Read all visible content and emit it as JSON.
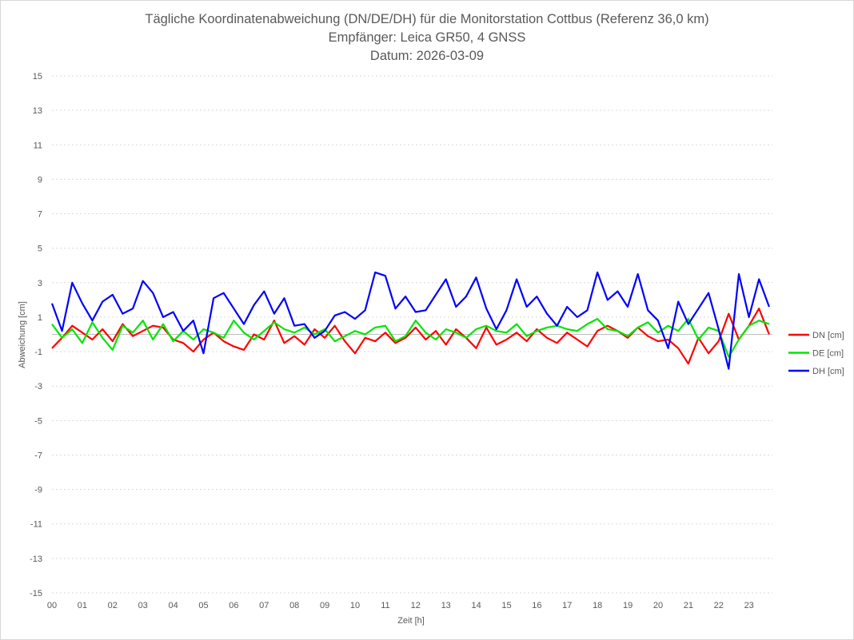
{
  "chart_data": {
    "type": "line",
    "title": "Tägliche Koordinatenabweichung (DN/DE/DH) für die Monitorstation Cottbus (Referenz 36,0 km)",
    "subtitle": [
      "Empfänger: Leica GR50, 4 GNSS",
      "Datum: 2026-03-09"
    ],
    "xlabel": "Zeit [h]",
    "ylabel": "Abweichung [cm]",
    "xlim": [
      0,
      24
    ],
    "ylim": [
      -15,
      15
    ],
    "x_tick_labels": [
      "00",
      "01",
      "02",
      "03",
      "04",
      "05",
      "06",
      "07",
      "08",
      "09",
      "10",
      "11",
      "12",
      "13",
      "14",
      "15",
      "16",
      "17",
      "18",
      "19",
      "20",
      "21",
      "22",
      "23"
    ],
    "y_ticks": [
      15,
      13,
      11,
      9,
      7,
      5,
      3,
      1,
      -1,
      -3,
      -5,
      -7,
      -9,
      -11,
      -13,
      -15
    ],
    "grid": true,
    "legend_position": "right",
    "x_step_hours": 0.3333,
    "series": [
      {
        "name": "DN [cm]",
        "color": "#ff0000",
        "values": [
          -0.8,
          -0.2,
          0.5,
          0.1,
          -0.3,
          0.3,
          -0.4,
          0.6,
          -0.1,
          0.2,
          0.5,
          0.4,
          -0.3,
          -0.5,
          -1.0,
          -0.3,
          0.1,
          -0.4,
          -0.7,
          -0.9,
          0.0,
          -0.3,
          0.8,
          -0.5,
          -0.1,
          -0.6,
          0.3,
          -0.2,
          0.5,
          -0.4,
          -1.1,
          -0.2,
          -0.4,
          0.1,
          -0.5,
          -0.2,
          0.4,
          -0.3,
          0.2,
          -0.6,
          0.3,
          -0.2,
          -0.8,
          0.4,
          -0.6,
          -0.3,
          0.1,
          -0.4,
          0.3,
          -0.2,
          -0.5,
          0.1,
          -0.3,
          -0.7,
          0.2,
          0.5,
          0.2,
          -0.2,
          0.4,
          -0.1,
          -0.4,
          -0.3,
          -0.8,
          -1.7,
          -0.2,
          -1.1,
          -0.4,
          1.2,
          -0.3,
          0.5,
          1.5,
          0.0
        ]
      },
      {
        "name": "DE [cm]",
        "color": "#00e600",
        "values": [
          0.6,
          -0.2,
          0.3,
          -0.5,
          0.7,
          -0.2,
          -0.9,
          0.5,
          0.1,
          0.8,
          -0.3,
          0.6,
          -0.4,
          0.2,
          -0.3,
          0.3,
          0.1,
          -0.2,
          0.8,
          0.1,
          -0.3,
          0.2,
          0.7,
          0.3,
          0.1,
          0.4,
          0.0,
          0.3,
          -0.4,
          -0.1,
          0.2,
          0.0,
          0.4,
          0.5,
          -0.4,
          -0.1,
          0.8,
          0.1,
          -0.3,
          0.3,
          0.1,
          -0.2,
          0.3,
          0.5,
          0.2,
          0.1,
          0.6,
          -0.1,
          0.2,
          0.4,
          0.5,
          0.3,
          0.2,
          0.6,
          0.9,
          0.3,
          0.2,
          -0.1,
          0.4,
          0.7,
          0.1,
          0.5,
          0.2,
          0.9,
          -0.3,
          0.4,
          0.2,
          -1.3,
          -0.3,
          0.5,
          0.8,
          0.6
        ]
      },
      {
        "name": "DH [cm]",
        "color": "#0000ff",
        "values": [
          1.8,
          0.2,
          3.0,
          1.8,
          0.8,
          1.9,
          2.3,
          1.2,
          1.5,
          3.1,
          2.4,
          1.0,
          1.3,
          0.2,
          0.8,
          -1.1,
          2.1,
          2.4,
          1.5,
          0.6,
          1.7,
          2.5,
          1.2,
          2.1,
          0.5,
          0.6,
          -0.2,
          0.2,
          1.1,
          1.3,
          0.9,
          1.4,
          3.6,
          3.4,
          1.5,
          2.2,
          1.3,
          1.4,
          2.3,
          3.2,
          1.6,
          2.2,
          3.3,
          1.5,
          0.3,
          1.4,
          3.2,
          1.6,
          2.2,
          1.2,
          0.5,
          1.6,
          1.0,
          1.4,
          3.6,
          2.0,
          2.5,
          1.6,
          3.5,
          1.4,
          0.8,
          -0.8,
          1.9,
          0.6,
          1.5,
          2.4,
          0.3,
          -2.0,
          3.5,
          1.0,
          3.2,
          1.6
        ]
      }
    ]
  }
}
